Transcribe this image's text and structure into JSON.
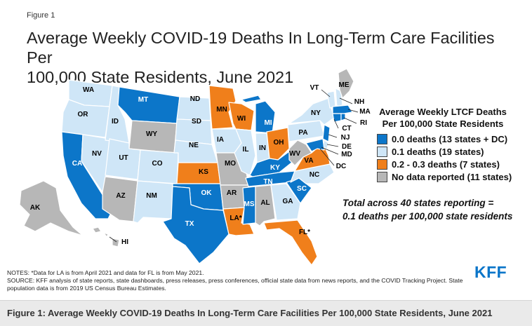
{
  "figure_label": "Figure 1",
  "title_line1": "Average Weekly COVID-19 Deaths In Long-Term Care Facilities Per",
  "title_line2": "100,000 State Residents, June 2021",
  "legend": {
    "title_line1": "Average Weekly LTCF Deaths",
    "title_line2": "Per 100,000 State Residents",
    "items": [
      {
        "label": "0.0 deaths (13 states + DC)",
        "color": "#0c76c9"
      },
      {
        "label": "0.1 deaths (19 states)",
        "color": "#cfe6f7"
      },
      {
        "label": "0.2 - 0.3 deaths (7 states)",
        "color": "#f07f1b"
      },
      {
        "label": "No data reported (11 states)",
        "color": "#b7b7b7"
      }
    ]
  },
  "total_line1": "Total across 40 states reporting =",
  "total_line2": "0.1 deaths per 100,000 state residents",
  "states": {
    "WA": "WA",
    "OR": "OR",
    "CA": "CA",
    "ID": "ID",
    "NV": "NV",
    "MT": "MT",
    "WY": "WY",
    "UT": "UT",
    "AZ": "AZ",
    "CO": "CO",
    "NM": "NM",
    "ND": "ND",
    "SD": "SD",
    "NE": "NE",
    "KS": "KS",
    "OK": "OK",
    "TX": "TX",
    "MN": "MN",
    "IA": "IA",
    "MO": "MO",
    "AR": "AR",
    "LA": "LA*",
    "WI": "WI",
    "IL": "IL",
    "MI": "MI",
    "IN": "IN",
    "OH": "OH",
    "KY": "KY",
    "TN": "TN",
    "MS": "MS",
    "AL": "AL",
    "GA": "GA",
    "FL": "FL*",
    "SC": "SC",
    "NC": "NC",
    "VA": "VA",
    "WV": "WV",
    "PA": "PA",
    "NY": "NY",
    "VT": "VT",
    "ME": "ME",
    "NH": "NH",
    "MA": "MA",
    "RI": "RI",
    "CT": "CT",
    "NJ": "NJ",
    "DE": "DE",
    "MD": "MD",
    "DC": "DC",
    "AK": "AK",
    "HI": "HI"
  },
  "notes_line1": "NOTES: *Data for LA is from April 2021 and data for FL is from May 2021.",
  "notes_line2": "SOURCE: KFF analysis of state reports, state dashboards, press releases, press conferences, official state data from news reports, and the COVID Tracking Project. State population data is from 2019 US Census Bureau Estimates.",
  "logo_text": "KFF",
  "caption": "Figure 1: Average Weekly COVID-19 Deaths In Long-Term Care Facilities Per 100,000 State Residents, June 2021"
}
